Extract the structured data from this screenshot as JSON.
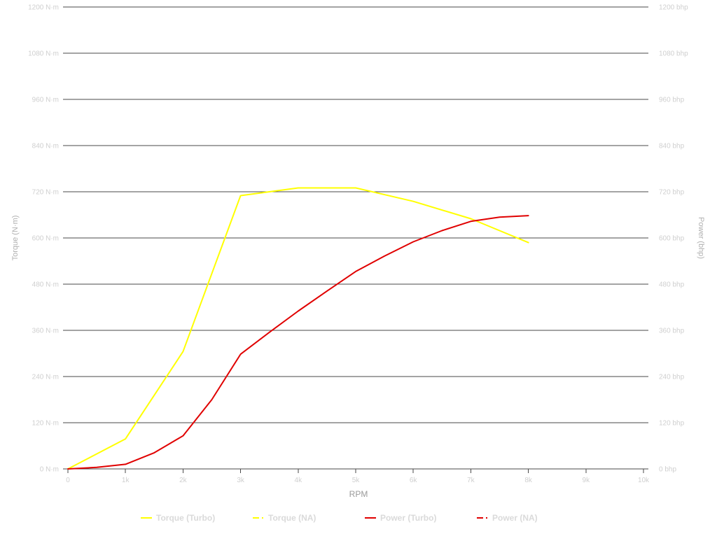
{
  "chart_data": {
    "type": "line",
    "title": "",
    "x_axis": {
      "label": "RPM",
      "range": [
        0,
        10000
      ],
      "ticks": [
        0,
        1000,
        2000,
        3000,
        4000,
        5000,
        6000,
        7000,
        8000,
        9000,
        10000
      ],
      "tick_labels": [
        "0",
        "1k",
        "2k",
        "3k",
        "4k",
        "5k",
        "6k",
        "7k",
        "8k",
        "9k",
        "10k"
      ]
    },
    "y_axis_left": {
      "label": "Torque (N·m)",
      "range": [
        0,
        1200
      ],
      "ticks": [
        0,
        120,
        240,
        360,
        480,
        600,
        720,
        840,
        960,
        1080,
        1200
      ],
      "tick_labels": [
        "0 N·m",
        "120 N·m",
        "240 N·m",
        "360 N·m",
        "480 N·m",
        "600 N·m",
        "720 N·m",
        "840 N·m",
        "960 N·m",
        "1080 N·m",
        "1200 N·m"
      ]
    },
    "y_axis_right": {
      "label": "Power (bhp)",
      "range": [
        0,
        1200
      ],
      "ticks": [
        0,
        120,
        240,
        360,
        480,
        600,
        720,
        840,
        960,
        1080,
        1200
      ],
      "tick_labels": [
        "0 bhp",
        "120 bhp",
        "240 bhp",
        "360 bhp",
        "480 bhp",
        "600 bhp",
        "720 bhp",
        "840 bhp",
        "960 bhp",
        "1080 bhp",
        "1200 bhp"
      ]
    },
    "grid": true,
    "legend_position": "bottom",
    "series": [
      {
        "name": "Torque (Turbo)",
        "axis": "left",
        "color": "#ffff00",
        "style": "solid",
        "x": [
          0,
          1000,
          2000,
          3000,
          4000,
          5000,
          6000,
          7000,
          8000
        ],
        "y": [
          0,
          78,
          305,
          710,
          730,
          730,
          695,
          650,
          588
        ]
      },
      {
        "name": "Torque (NA)",
        "axis": "left",
        "color": "#ffff00",
        "style": "dashed",
        "x": [],
        "y": []
      },
      {
        "name": "Power (Turbo)",
        "axis": "right",
        "color": "#e00000",
        "style": "solid",
        "x": [
          0,
          500,
          1000,
          1500,
          2000,
          2500,
          3000,
          3500,
          4000,
          4500,
          5000,
          5500,
          6000,
          6500,
          7000,
          7500,
          8000
        ],
        "y": [
          0,
          4,
          12,
          42,
          86,
          180,
          298,
          355,
          410,
          462,
          513,
          553,
          590,
          619,
          643,
          654,
          658
        ]
      },
      {
        "name": "Power (NA)",
        "axis": "right",
        "color": "#e00000",
        "style": "dashed",
        "x": [],
        "y": []
      }
    ]
  }
}
